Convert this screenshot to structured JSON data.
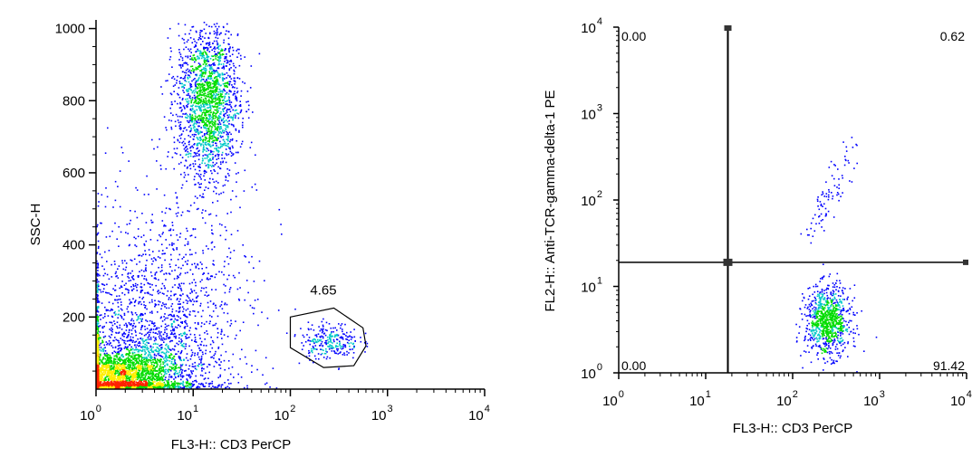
{
  "chart_data": [
    {
      "type": "scatter",
      "plot": "density-dot-plot",
      "xlabel": "FL3-H:: CD3 PerCP",
      "ylabel": "SSC-H",
      "x_scale": "log",
      "xlim": [
        1,
        10000
      ],
      "ylim": [
        0,
        1024
      ],
      "y_ticks": [
        "200",
        "400",
        "600",
        "800",
        "1000"
      ],
      "x_ticks": [
        {
          "base": "10",
          "exp": "0"
        },
        {
          "base": "10",
          "exp": "1"
        },
        {
          "base": "10",
          "exp": "2"
        },
        {
          "base": "10",
          "exp": "3"
        },
        {
          "base": "10",
          "exp": "4"
        }
      ],
      "populations": [
        {
          "x_center": 1.6,
          "y_center": 40,
          "x_spread_decades": 0.35,
          "y_spread": 40,
          "n": 2600
        },
        {
          "x_center": 3.0,
          "y_center": 140,
          "x_spread_decades": 0.45,
          "y_spread": 120,
          "n": 1300
        },
        {
          "x_center": 14,
          "y_center": 800,
          "x_spread_decades": 0.16,
          "y_spread": 110,
          "n": 1900
        },
        {
          "x_center": 6,
          "y_center": 300,
          "x_spread_decades": 0.45,
          "y_spread": 180,
          "n": 600
        },
        {
          "x_center": 250,
          "y_center": 135,
          "x_spread_decades": 0.15,
          "y_spread": 25,
          "n": 260
        }
      ],
      "gate": {
        "label": "4.65",
        "vertices": [
          [
            100,
            200
          ],
          [
            280,
            225
          ],
          [
            560,
            170
          ],
          [
            600,
            120
          ],
          [
            450,
            65
          ],
          [
            220,
            60
          ],
          [
            100,
            115
          ]
        ]
      },
      "colors": {
        "low": "#0000ff",
        "mid": "#00c8c8",
        "high": "#00dd00",
        "peak": "#ffee00",
        "max": "#ff2200"
      }
    },
    {
      "type": "scatter",
      "plot": "quadrant-dot-plot",
      "xlabel": "FL3-H:: CD3 PerCP",
      "ylabel": "FL2-H:: Anti-TCR-gamma-delta-1 PE",
      "x_scale": "log",
      "y_scale": "log",
      "xlim": [
        1,
        10000
      ],
      "ylim": [
        1,
        10000
      ],
      "x_ticks": [
        {
          "base": "10",
          "exp": "0"
        },
        {
          "base": "10",
          "exp": "1"
        },
        {
          "base": "10",
          "exp": "2"
        },
        {
          "base": "10",
          "exp": "3"
        },
        {
          "base": "10",
          "exp": "4"
        }
      ],
      "y_ticks": [
        {
          "base": "10",
          "exp": "0"
        },
        {
          "base": "10",
          "exp": "1"
        },
        {
          "base": "10",
          "exp": "2"
        },
        {
          "base": "10",
          "exp": "3"
        },
        {
          "base": "10",
          "exp": "4"
        }
      ],
      "quadrant_divider": {
        "x": 18,
        "y": 19
      },
      "quadrant_values": {
        "top_left": "0.00",
        "top_right": "0.62",
        "bottom_left": "0.00",
        "bottom_right": "91.42"
      },
      "populations": [
        {
          "x_center": 250,
          "y_center": 4.0,
          "x_spread_decades": 0.13,
          "y_spread_decades": 0.2,
          "n": 900
        },
        {
          "x_center": 260,
          "y_center": 120,
          "x_spread_decades": 0.16,
          "y_spread_decades": 0.28,
          "n": 90,
          "correlated": true
        }
      ]
    }
  ]
}
